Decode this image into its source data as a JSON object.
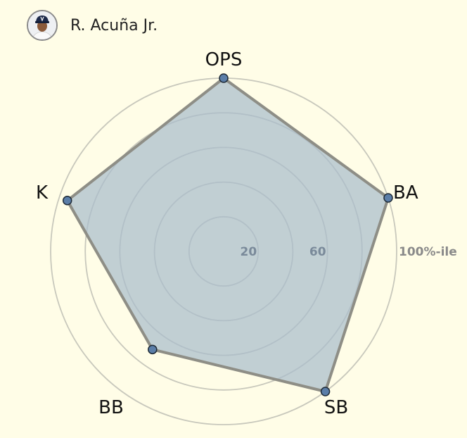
{
  "player": {
    "name": "R. Acuña Jr."
  },
  "colors": {
    "background": "#fffde7",
    "fill": "#a9bdcc",
    "stroke": "#8e8e86",
    "point": "#5b7ea8",
    "grid": "#c8c8bc"
  },
  "chart_data": {
    "type": "radar",
    "categories": [
      "OPS",
      "BA",
      "SB",
      "BB",
      "K"
    ],
    "values": [
      100,
      100,
      100,
      70,
      95
    ],
    "rmax": 100,
    "rings": [
      20,
      40,
      60,
      80,
      100
    ],
    "ring_labels": [
      {
        "value": 20,
        "text": "20"
      },
      {
        "value": 60,
        "text": "60"
      },
      {
        "value": 100,
        "text": "100%-ile"
      }
    ]
  }
}
